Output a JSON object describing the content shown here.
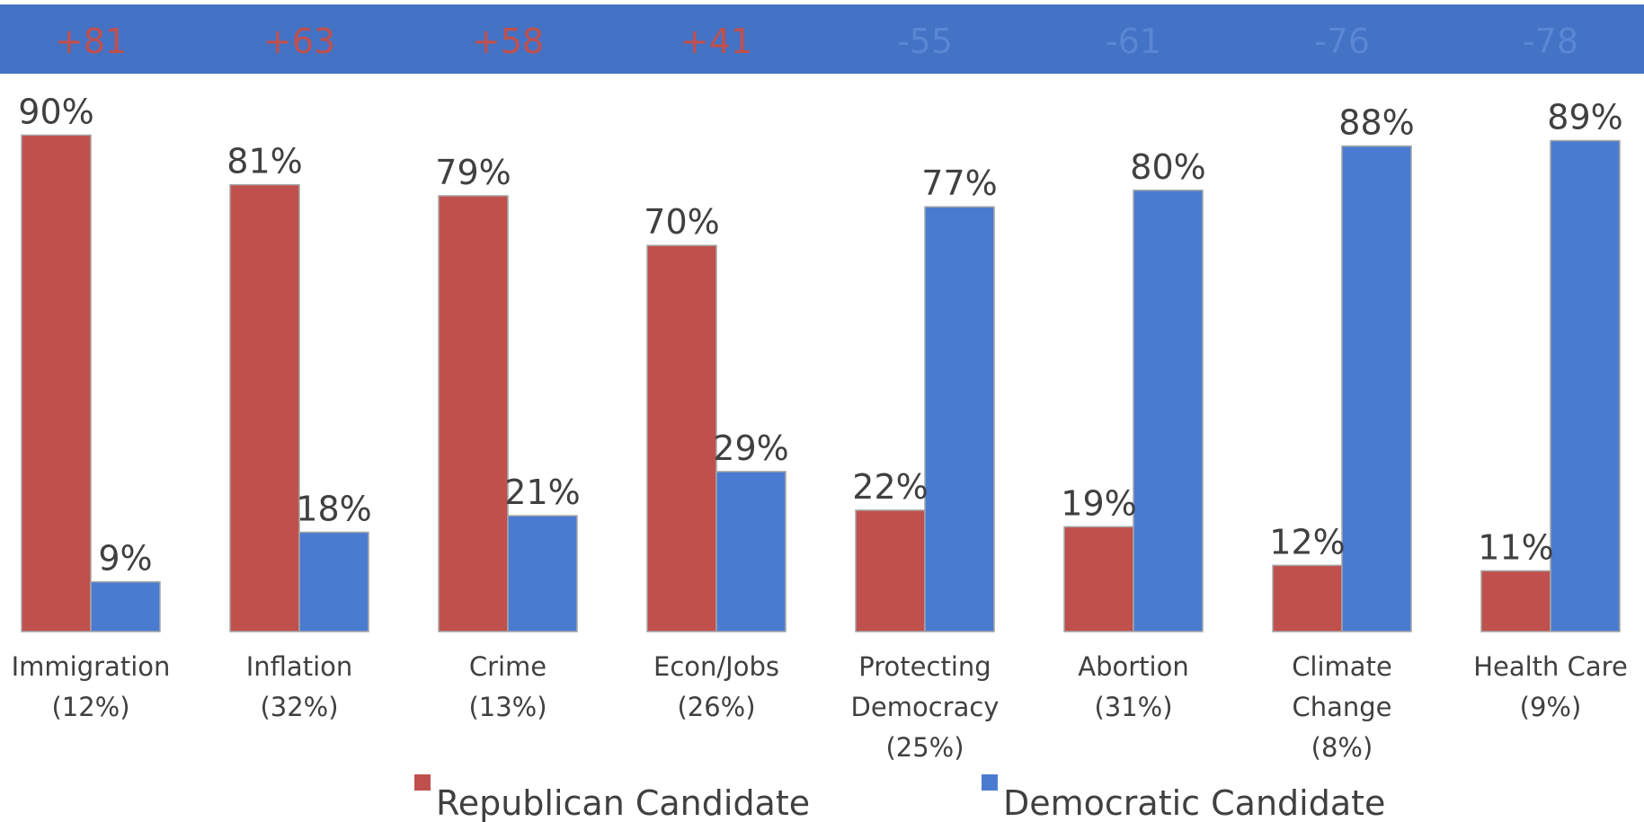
{
  "colors": {
    "banner": "#4472C4",
    "republican": "#C0504D",
    "democratic": "#4A7BD0",
    "margin_republican": "#C0504D",
    "margin_democratic": "#5A86D4",
    "text": "#404040",
    "bar_edge": "#A6A6A6"
  },
  "margins": [
    "+81",
    "+63",
    "+58",
    "+41",
    "-55",
    "-61",
    "-76",
    "-78"
  ],
  "chart_data": {
    "type": "bar",
    "categories": [
      [
        "Immigration",
        "(12%)"
      ],
      [
        "Inflation",
        "(32%)"
      ],
      [
        "Crime",
        "(13%)"
      ],
      [
        "Econ/Jobs",
        "(26%)"
      ],
      [
        "Protecting",
        "Democracy",
        "(25%)"
      ],
      [
        "Abortion",
        "(31%)"
      ],
      [
        "Climate",
        "Change",
        "(8%)"
      ],
      [
        "Health Care",
        "(9%)"
      ]
    ],
    "series": [
      {
        "name": "Republican Candidate",
        "values": [
          90,
          81,
          79,
          70,
          22,
          19,
          12,
          11
        ],
        "labels": [
          "90%",
          "81%",
          "79%",
          "70%",
          "22%",
          "19%",
          "12%",
          "11%"
        ]
      },
      {
        "name": "Democratic Candidate",
        "values": [
          9,
          18,
          21,
          29,
          77,
          80,
          88,
          89
        ],
        "labels": [
          "9%",
          "18%",
          "21%",
          "29%",
          "77%",
          "80%",
          "88%",
          "89%"
        ]
      }
    ],
    "ylim": [
      0,
      100
    ],
    "grid": false,
    "legend": "bottom"
  }
}
